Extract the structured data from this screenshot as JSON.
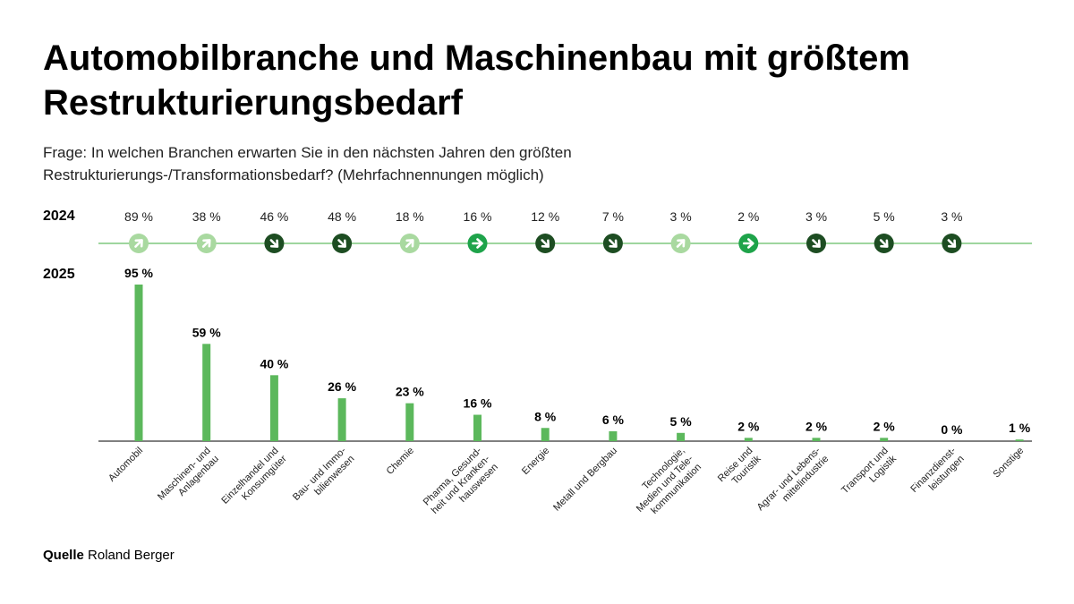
{
  "title": "Automobilbranche und Maschinenbau mit größtem Restrukturierungsbedarf",
  "subtitle": "Frage: In welchen Branchen erwarten Sie in den nächsten Jahren den größten Restrukturierungs-/Transformationsbedarf? (Mehrfachnennungen möglich)",
  "source_label": "Quelle",
  "source_name": "Roland Berger",
  "colors": {
    "bar": "#5cb85c",
    "line": "#7ec97e",
    "arrow_up": "#a9d9a0",
    "arrow_right": "#1ea34a",
    "arrow_down": "#1d4d22"
  },
  "chart_data": {
    "type": "bar",
    "row_labels": [
      "2024",
      "2025"
    ],
    "categories": [
      [
        "Automobil"
      ],
      [
        "Maschinen- und",
        "Anlagenbau"
      ],
      [
        "Einzelhandel und",
        "Konsumgüter"
      ],
      [
        "Bau- und Immo-",
        "bilienwesen"
      ],
      [
        "Chemie"
      ],
      [
        "Pharma, Gesund-",
        "heit und Kranken-",
        "hauswesen"
      ],
      [
        "Energie"
      ],
      [
        "Metall und Bergbau"
      ],
      [
        "Technologie,",
        "Medien und Tele-",
        "kommunikation"
      ],
      [
        "Reise und",
        "Touristik"
      ],
      [
        "Agrar- und Lebens-",
        "mittelindustrie"
      ],
      [
        "Transport und",
        "Logistik"
      ],
      [
        "Finanzdienst-",
        "leistungen"
      ],
      [
        "Sonstige"
      ]
    ],
    "series": [
      {
        "name": "2025",
        "values": [
          95,
          59,
          40,
          26,
          23,
          16,
          8,
          6,
          5,
          2,
          2,
          2,
          0,
          1
        ]
      },
      {
        "name": "2024",
        "values": [
          89,
          38,
          46,
          48,
          18,
          16,
          12,
          7,
          3,
          2,
          3,
          5,
          3,
          null
        ]
      }
    ],
    "trend": [
      "up",
      "up",
      "down",
      "down",
      "up",
      "flat",
      "down",
      "down",
      "up",
      "flat",
      "down",
      "down",
      "down",
      null
    ],
    "unit": "%",
    "ylim": [
      0,
      100
    ],
    "grid": false
  }
}
